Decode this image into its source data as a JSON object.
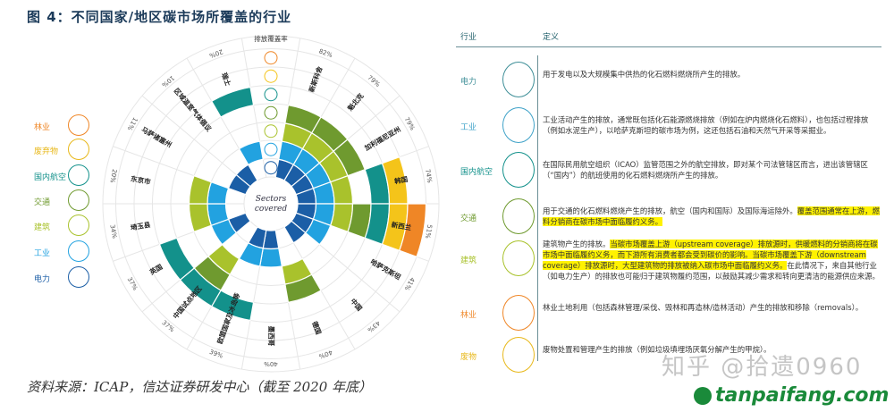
{
  "title": "图 4：不同国家/地区碳市场所覆盖的行业",
  "source": "资料来源：ICAP，信达证券研发中心（截至 2020 年底）",
  "colors": {
    "电力": "#1b5ea6",
    "工业": "#22a2e0",
    "建筑": "#a9c22c",
    "交通": "#6f9a2f",
    "国内航空": "#13918b",
    "废弃物": "#f4c41a",
    "林业": "#ef8626"
  },
  "legend": [
    {
      "label": "林业",
      "color": "#ef8626",
      "icon": "forest-icon"
    },
    {
      "label": "废弃物",
      "color": "#e8b81a",
      "icon": "waste-icon"
    },
    {
      "label": "国内航空",
      "color": "#13918b",
      "icon": "airplane-icon"
    },
    {
      "label": "交通",
      "color": "#6f9a2f",
      "icon": "truck-icon"
    },
    {
      "label": "建筑",
      "color": "#a9c22c",
      "icon": "house-icon"
    },
    {
      "label": "工业",
      "color": "#22a2e0",
      "icon": "factory-icon"
    },
    {
      "label": "电力",
      "color": "#1b5ea6",
      "icon": "power-tower-icon"
    }
  ],
  "chart_data": {
    "type": "radial-sector-coverage",
    "center_label": "Sectors covered",
    "header_label": "排放覆盖率",
    "rings": [
      "电力",
      "工业",
      "建筑",
      "交通",
      "国内航空",
      "废弃物",
      "林业"
    ],
    "markets": [
      {
        "name": "新斯科舍",
        "coverage": "82%",
        "sectors": [
          "电力",
          "工业",
          "建筑",
          "交通"
        ]
      },
      {
        "name": "魁北克",
        "coverage": "79%",
        "sectors": [
          "电力",
          "工业",
          "建筑",
          "交通"
        ]
      },
      {
        "name": "加利福尼亚州",
        "coverage": "79%",
        "sectors": [
          "电力",
          "工业",
          "建筑",
          "交通"
        ]
      },
      {
        "name": "韩国",
        "coverage": "74%",
        "sectors": [
          "电力",
          "工业",
          "建筑",
          "国内航空",
          "废弃物"
        ]
      },
      {
        "name": "新西兰",
        "coverage": "51%",
        "sectors": [
          "电力",
          "工业",
          "建筑",
          "交通",
          "国内航空",
          "废弃物",
          "林业"
        ]
      },
      {
        "name": "哈萨克斯坦",
        "coverage": "41%",
        "sectors": [
          "电力",
          "工业"
        ]
      },
      {
        "name": "中国",
        "coverage": "43%",
        "sectors": [
          "电力"
        ]
      },
      {
        "name": "德国",
        "coverage": "40%",
        "sectors": [
          "建筑",
          "交通"
        ]
      },
      {
        "name": "墨西哥",
        "coverage": "40%",
        "sectors": [
          "电力",
          "工业"
        ]
      },
      {
        "name": "欧盟国家及冰岛等",
        "coverage": "39%",
        "sectors": [
          "电力",
          "工业",
          "国内航空"
        ]
      },
      {
        "name": "中国试点地区",
        "coverage": "37%",
        "sectors": [
          "建筑",
          "交通",
          "国内航空"
        ]
      },
      {
        "name": "英国",
        "coverage": "37%",
        "sectors": [
          "电力",
          "工业",
          "国内航空"
        ]
      },
      {
        "name": "埼玉县",
        "coverage": "34%",
        "sectors": [
          "工业",
          "建筑"
        ]
      },
      {
        "name": "东京市",
        "coverage": "20%",
        "sectors": [
          "工业",
          "建筑"
        ]
      },
      {
        "name": "马萨诸塞州",
        "coverage": "11%",
        "sectors": [
          "电力"
        ]
      },
      {
        "name": "区域温室气体倡议",
        "coverage": "10%",
        "sectors": [
          "电力"
        ]
      },
      {
        "name": "瑞士",
        "coverage": "20%",
        "sectors": [
          "工业",
          "国内航空"
        ]
      }
    ]
  },
  "table": {
    "header_sector": "行业",
    "header_definition": "定义",
    "rows": [
      {
        "name": "电力",
        "color": "#3f8f98",
        "icon": "power-tower-icon",
        "segments": [
          {
            "t": "用于发电以及大规模集中供热的化石燃料燃烧所产生的排放。"
          }
        ]
      },
      {
        "name": "工业",
        "color": "#3fa2c8",
        "icon": "factory-icon",
        "segments": [
          {
            "t": "工业活动产生的排放，通常既包括化石能源燃烧排放（例如在炉内燃烧化石燃料），也包括过程排放（例如水泥生产），以哈萨克斯坦的碳市场为例，这还包括石油和天然气开采等采掘业。"
          }
        ]
      },
      {
        "name": "国内航空",
        "color": "#13918b",
        "icon": "airplane-icon",
        "segments": [
          {
            "t": "在国际民用航空组织（ICAO）监管范围之外的航空排放，即对某个司法管辖区而言，进出该管辖区（“国内”）的航班使用的化石燃料燃烧所产生的排放。"
          }
        ]
      },
      {
        "name": "交通",
        "color": "#6f9a2f",
        "icon": "truck-icon",
        "segments": [
          {
            "t": "用于交通的化石燃料燃烧产生的排放，航空（国内和国际）及国际海运除外。"
          },
          {
            "t": "覆盖范围通常在上游，燃料分销商在碳市场中面临履约义务。",
            "hl": true
          }
        ]
      },
      {
        "name": "建筑",
        "color": "#a9c22c",
        "icon": "house-icon",
        "segments": [
          {
            "t": "建筑物产生的排放。"
          },
          {
            "t": "当碳市场覆盖上游（upstream coverage）排放源时，供暖燃料的分销商将在碳市场中面临履约义务，而下游所有消费者都会受到碳价的影响。当碳市场覆盖下游（downstream coverage）排放源时，大型建筑物的排放被纳入碳市场中面临履约义务。",
            "hl": true
          },
          {
            "t": "在此情况下，来自其他行业（如电力生产）的排放也可能归于建筑物履约范围，以鼓励其减少需求和转向更清洁的能源供应来源。"
          }
        ]
      },
      {
        "name": "林业",
        "color": "#ef8626",
        "icon": "forest-icon",
        "segments": [
          {
            "t": "林业土地利用（包括森林管理/采伐、毁林和再造林/造林活动）产生的排放和移除（removals）。"
          }
        ]
      },
      {
        "name": "废物",
        "color": "#e8b81a",
        "icon": "waste-icon",
        "segments": [
          {
            "t": "废物处置和管理产生的排放（例如垃圾填埋场厌氧分解产生的甲烷）。"
          }
        ]
      }
    ]
  },
  "watermarks": {
    "zhihu": "知乎 @拾遗0960",
    "site": "tanpaifang.com"
  }
}
